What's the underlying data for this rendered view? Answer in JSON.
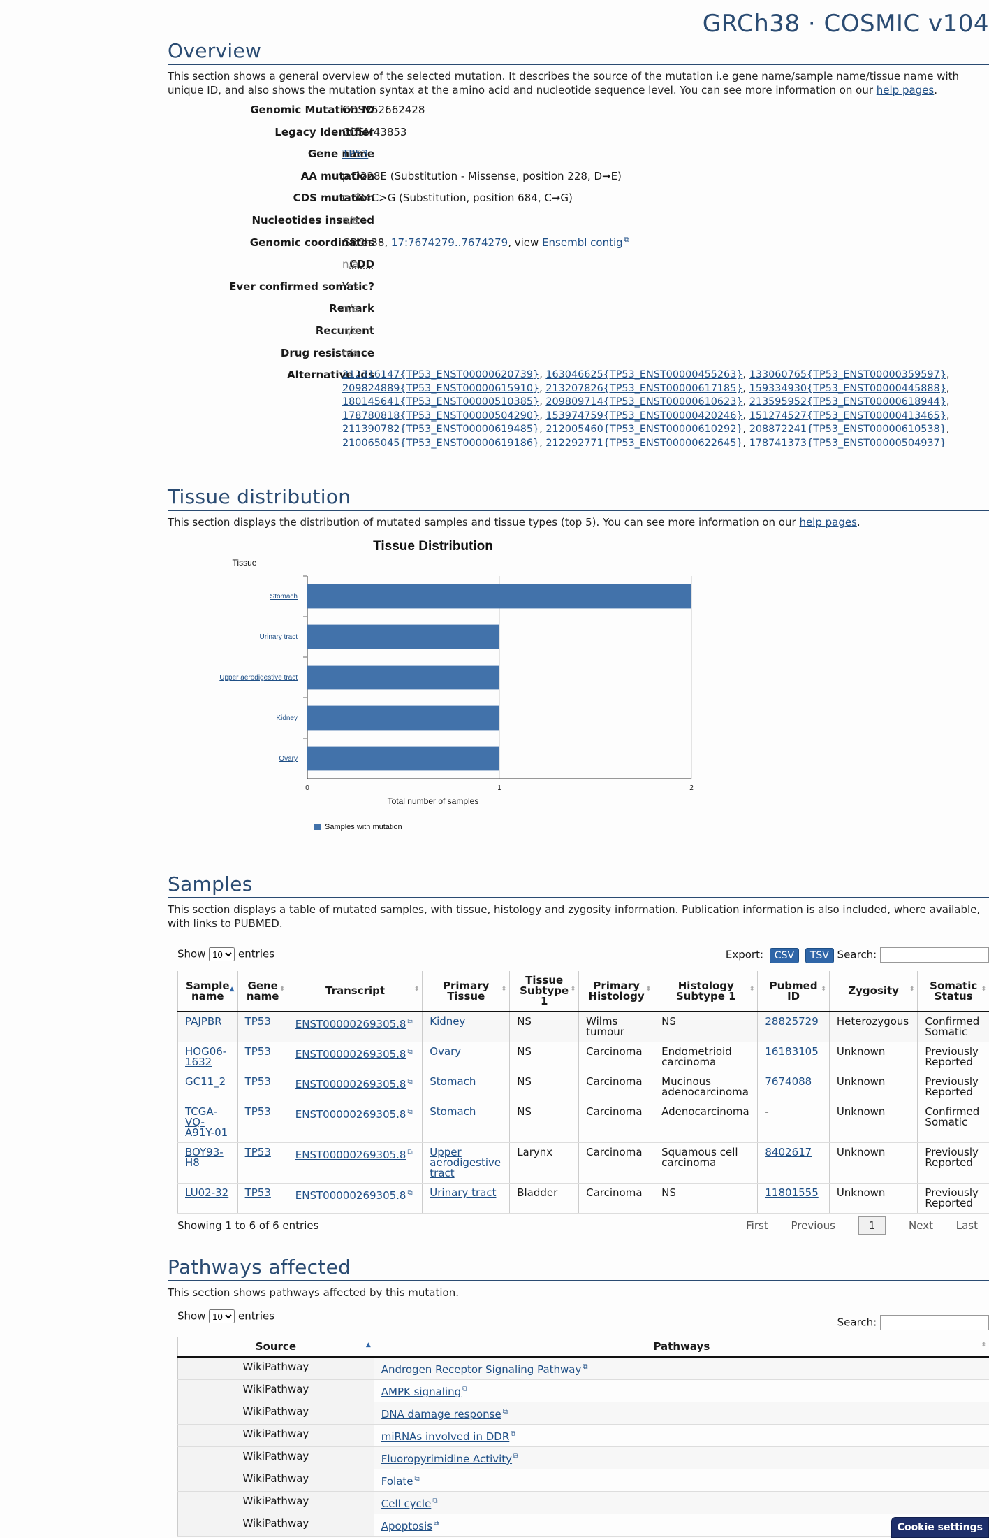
{
  "header": {
    "title": "GRCh38 · COSMIC v104"
  },
  "overview": {
    "heading": "Overview",
    "intro_a": "This section shows a general overview of the selected mutation. It describes the source of the mutation i.e gene name/sample name/tissue name with unique ID, and also shows the mutation syntax at the amino acid and nucleotide sequence level. You can see more information on our ",
    "intro_link": "help pages",
    "intro_b": ".",
    "rows": [
      {
        "key": "Genomic Mutation ID",
        "value": "COSV52662428"
      },
      {
        "key": "Legacy Identifier",
        "value": "COSM43853"
      },
      {
        "key": "Gene name",
        "value": "TP53"
      },
      {
        "key": "AA mutation",
        "value": "p.D228E (Substitution - Missense, position 228, D➞E)"
      },
      {
        "key": "CDS mutation",
        "value": "c.684C>G (Substitution, position 684, C➞G)"
      },
      {
        "key": "Nucleotides inserted",
        "value": "n/a"
      },
      {
        "key": "Genomic coordinates",
        "value_a": "GRCh38, ",
        "value_link": "17:7674279..7674279",
        "value_b": ", view ",
        "value_link2": "Ensembl contig"
      },
      {
        "key": "CDD",
        "value": "n/a"
      },
      {
        "key": "Ever confirmed somatic?",
        "value": "Yes"
      },
      {
        "key": "Remark",
        "value": "n/a"
      },
      {
        "key": "Recurrent",
        "value": "n/a"
      },
      {
        "key": "Drug resistance",
        "value": "n/a"
      },
      {
        "key": "Alternative Ids"
      }
    ],
    "alternative_ids": [
      "212316147{TP53_ENST00000620739}",
      "163046625{TP53_ENST00000455263}",
      "133060765{TP53_ENST00000359597}",
      "209824889{TP53_ENST00000615910}",
      "213207826{TP53_ENST00000617185}",
      "159334930{TP53_ENST00000445888}",
      "180145641{TP53_ENST00000510385}",
      "209809714{TP53_ENST00000610623}",
      "213595952{TP53_ENST00000618944}",
      "178780818{TP53_ENST00000504290}",
      "153974759{TP53_ENST00000420246}",
      "151274527{TP53_ENST00000413465}",
      "211390782{TP53_ENST00000619485}",
      "212005460{TP53_ENST00000610292}",
      "208872241{TP53_ENST00000610538}",
      "210065045{TP53_ENST00000619186}",
      "212292771{TP53_ENST00000622645}",
      "178741373{TP53_ENST00000504937}"
    ]
  },
  "tissue": {
    "heading": "Tissue distribution",
    "intro_a": "This section displays the distribution of mutated samples and tissue types (top 5). You can see more information on our ",
    "intro_link": "help pages",
    "intro_b": "."
  },
  "chart_data": {
    "type": "bar",
    "orientation": "horizontal",
    "title": "Tissue Distribution",
    "ylabel": "Tissue",
    "xlabel": "Total number of samples",
    "categories": [
      "Stomach",
      "Urinary tract",
      "Upper aerodigestive tract",
      "Kidney",
      "Ovary"
    ],
    "series": [
      {
        "name": "Samples with mutation",
        "values": [
          2,
          1,
          1,
          1,
          1
        ]
      }
    ],
    "xlim": [
      0,
      2
    ],
    "xticks": [
      "0",
      "1",
      "2"
    ],
    "grid": true,
    "legend": "bottom-left",
    "color": "#4272aa"
  },
  "samples": {
    "heading": "Samples",
    "intro": "This section displays a table of mutated samples, with tissue, histology and zygosity information. Publication information is also included, where available, with links to PUBMED.",
    "show_label": "Show",
    "show_value": "10",
    "entries_label": "entries",
    "export_label": "Export:",
    "csv": "CSV",
    "tsv": "TSV",
    "search_label": "Search:",
    "columns": [
      "Sample name",
      "Gene name",
      "Transcript",
      "Primary Tissue",
      "Tissue Subtype 1",
      "Primary Histology",
      "Histology Subtype 1",
      "Pubmed ID",
      "Zygosity",
      "Somatic Status"
    ],
    "rows": [
      [
        "PAJPBR",
        "TP53",
        "ENST00000269305.8",
        "Kidney",
        "NS",
        "Wilms tumour",
        "NS",
        "28825729",
        "Heterozygous",
        "Confirmed Somatic"
      ],
      [
        "HOG06-1632",
        "TP53",
        "ENST00000269305.8",
        "Ovary",
        "NS",
        "Carcinoma",
        "Endometrioid carcinoma",
        "16183105",
        "Unknown",
        "Previously Reported"
      ],
      [
        "GC11_2",
        "TP53",
        "ENST00000269305.8",
        "Stomach",
        "NS",
        "Carcinoma",
        "Mucinous adenocarcinoma",
        "7674088",
        "Unknown",
        "Previously Reported"
      ],
      [
        "TCGA-VQ-A91Y-01",
        "TP53",
        "ENST00000269305.8",
        "Stomach",
        "NS",
        "Carcinoma",
        "Adenocarcinoma",
        "-",
        "Unknown",
        "Confirmed Somatic"
      ],
      [
        "BOY93-H8",
        "TP53",
        "ENST00000269305.8",
        "Upper aerodigestive tract",
        "Larynx",
        "Carcinoma",
        "Squamous cell carcinoma",
        "8402617",
        "Unknown",
        "Previously Reported"
      ],
      [
        "LU02-32",
        "TP53",
        "ENST00000269305.8",
        "Urinary tract",
        "Bladder",
        "Carcinoma",
        "NS",
        "11801555",
        "Unknown",
        "Previously Reported"
      ]
    ],
    "info": "Showing 1 to 6 of 6 entries",
    "pager": {
      "first": "First",
      "previous": "Previous",
      "current": "1",
      "next": "Next",
      "last": "Last"
    }
  },
  "pathways": {
    "heading": "Pathways affected",
    "intro": "This section shows pathways affected by this mutation.",
    "show_label": "Show",
    "show_value": "10",
    "entries_label": "entries",
    "search_label": "Search:",
    "columns": [
      "Source",
      "Pathways"
    ],
    "rows": [
      [
        "WikiPathway",
        "Androgen Receptor Signaling Pathway"
      ],
      [
        "WikiPathway",
        "AMPK signaling"
      ],
      [
        "WikiPathway",
        "DNA damage response"
      ],
      [
        "WikiPathway",
        "miRNAs involved in DDR"
      ],
      [
        "WikiPathway",
        "Fluoropyrimidine Activity"
      ],
      [
        "WikiPathway",
        "Folate"
      ],
      [
        "WikiPathway",
        "Cell cycle"
      ],
      [
        "WikiPathway",
        "Apoptosis"
      ]
    ]
  },
  "cookie": {
    "label": "Cookie settings"
  }
}
